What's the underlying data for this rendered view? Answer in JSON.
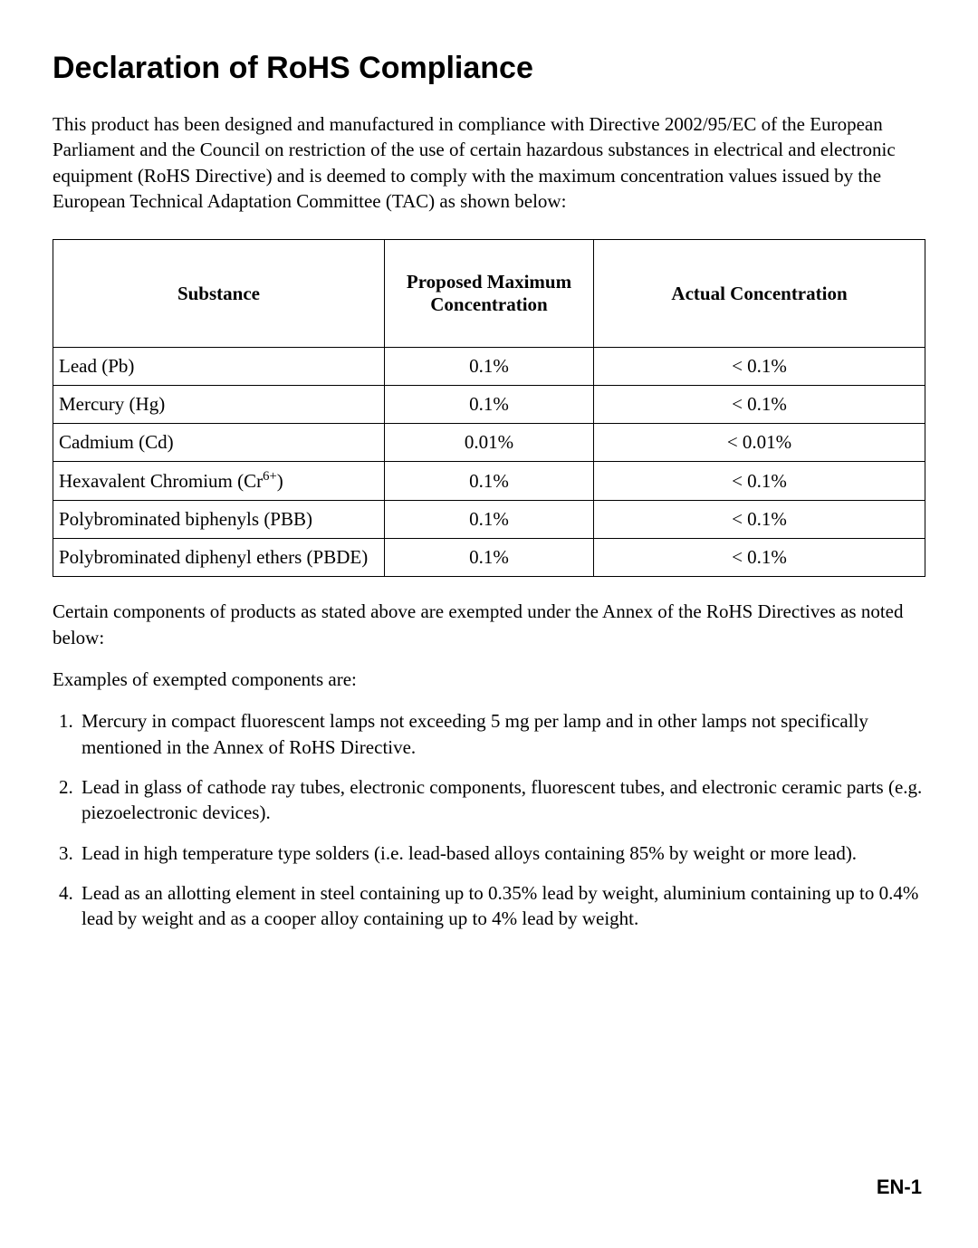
{
  "title": "Declaration of RoHS Compliance",
  "intro": "This product has been designed and manufactured in compliance with Directive 2002/95/EC of the European Parliament and the Council on restriction of the use of certain hazardous substances in electrical and electronic equipment (RoHS Directive) and is deemed to comply with the maximum concentration values issued by the European Technical Adaptation Committee (TAC) as shown below:",
  "table": {
    "columns": [
      "Substance",
      "Proposed Maximum Concentration",
      "Actual Concentration"
    ],
    "rows": [
      {
        "substance_html": "Lead (Pb)",
        "max": "0.1%",
        "actual": "< 0.1%"
      },
      {
        "substance_html": "Mercury (Hg)",
        "max": "0.1%",
        "actual": "< 0.1%"
      },
      {
        "substance_html": "Cadmium (Cd)",
        "max": "0.01%",
        "actual": "< 0.01%"
      },
      {
        "substance_html": "Hexavalent Chromium (Cr<sup>6+</sup>)",
        "max": "0.1%",
        "actual": "< 0.1%"
      },
      {
        "substance_html": "Polybrominated biphenyls (PBB)",
        "max": "0.1%",
        "actual": "< 0.1%"
      },
      {
        "substance_html": "Polybrominated diphenyl ethers (PBDE)",
        "max": "0.1%",
        "actual": "< 0.1%"
      }
    ],
    "border_color": "#000000",
    "header_fontweight": 700,
    "cell_fontsize_pt": 16
  },
  "exempt_intro": "Certain components of products as stated above are exempted under the Annex of the RoHS Directives as noted below:",
  "examples_label": "Examples of exempted components are:",
  "exemptions": [
    "Mercury in compact fluorescent lamps not exceeding 5 mg per lamp and in other lamps not specifically mentioned in the Annex of RoHS Directive.",
    "Lead in glass of cathode ray tubes, electronic components, fluorescent tubes, and electronic ceramic parts (e.g. piezoelectronic devices).",
    "Lead in high temperature type solders (i.e. lead-based alloys containing 85% by weight or more lead).",
    "Lead as an allotting element in steel containing up to 0.35% lead by weight, aluminium containing up to 0.4% lead by weight and as a cooper alloy containing up to 4% lead by weight."
  ],
  "page_number": "EN-1",
  "styles": {
    "page_bg": "#ffffff",
    "text_color": "#000000",
    "title_font": "Arial",
    "title_fontsize_pt": 26,
    "body_font": "Times New Roman",
    "body_fontsize_pt": 16,
    "pagenum_font": "Arial",
    "pagenum_fontsize_pt": 17
  }
}
